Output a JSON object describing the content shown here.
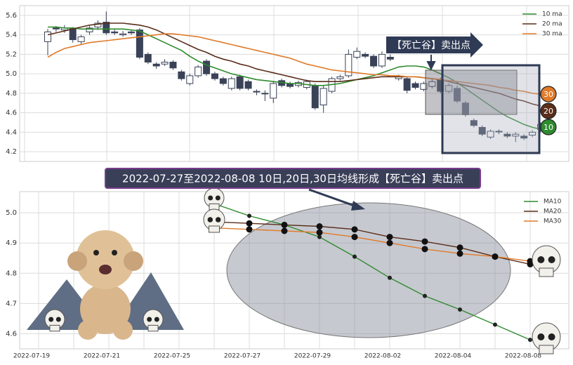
{
  "chart_data": [
    {
      "type": "candlestick",
      "open": [
        5.33,
        5.47,
        5.45,
        5.47,
        5.33,
        5.43,
        5.48,
        5.53,
        5.43,
        5.4,
        5.43,
        5.45,
        5.2,
        5.1,
        5.1,
        5.12,
        5.02,
        4.9,
        4.98,
        5.13,
        5.0,
        4.95,
        4.85,
        4.97,
        4.92,
        4.82,
        4.8,
        4.75,
        4.93,
        4.9,
        4.88,
        4.86,
        4.88,
        4.68,
        4.82,
        4.95,
        4.98,
        5.17,
        5.2,
        5.18,
        5.08,
        5.17,
        4.95,
        4.95,
        4.9,
        4.84,
        4.87,
        4.94,
        4.82,
        4.85,
        4.7,
        4.52,
        4.45,
        4.35,
        4.41,
        4.38,
        4.36,
        4.36,
        4.37,
        4.43
      ],
      "close": [
        5.43,
        5.46,
        5.47,
        5.35,
        5.38,
        5.47,
        5.52,
        5.42,
        5.42,
        5.41,
        5.42,
        5.17,
        5.12,
        5.08,
        5.12,
        5.06,
        4.95,
        4.98,
        5.07,
        5.0,
        4.95,
        4.9,
        4.95,
        4.85,
        4.85,
        4.82,
        4.8,
        4.9,
        4.88,
        4.87,
        4.91,
        4.92,
        4.65,
        4.85,
        4.95,
        4.97,
        5.2,
        5.23,
        5.18,
        5.08,
        5.2,
        5.15,
        4.97,
        4.83,
        4.86,
        4.9,
        4.92,
        4.82,
        4.88,
        4.72,
        4.58,
        4.47,
        4.38,
        4.41,
        4.41,
        4.36,
        4.38,
        4.34,
        4.4,
        4.48
      ],
      "high": [
        5.46,
        5.49,
        5.5,
        5.48,
        5.4,
        5.49,
        5.55,
        5.64,
        5.46,
        5.44,
        5.45,
        5.47,
        5.22,
        5.12,
        5.15,
        5.14,
        5.04,
        5.0,
        5.09,
        5.15,
        5.02,
        4.97,
        4.97,
        4.99,
        4.94,
        4.84,
        4.83,
        4.92,
        4.95,
        4.92,
        4.93,
        4.94,
        4.9,
        4.88,
        4.97,
        4.99,
        5.25,
        5.27,
        5.22,
        5.2,
        5.23,
        5.2,
        4.99,
        4.97,
        4.92,
        4.92,
        4.95,
        4.96,
        4.9,
        4.88,
        4.72,
        4.54,
        4.47,
        4.43,
        4.43,
        4.4,
        4.4,
        4.38,
        4.42,
        4.5
      ],
      "low": [
        5.19,
        5.43,
        5.42,
        5.32,
        5.3,
        5.4,
        5.45,
        5.4,
        5.4,
        5.38,
        5.4,
        5.15,
        5.1,
        5.05,
        5.08,
        5.04,
        4.93,
        4.88,
        4.96,
        4.98,
        4.93,
        4.88,
        4.83,
        4.83,
        4.83,
        4.78,
        4.72,
        4.7,
        4.86,
        4.85,
        4.86,
        4.84,
        4.63,
        4.6,
        4.8,
        4.93,
        4.96,
        5.15,
        5.16,
        5.06,
        5.06,
        5.13,
        4.93,
        4.8,
        4.84,
        4.82,
        4.85,
        4.8,
        4.8,
        4.7,
        4.56,
        4.45,
        4.36,
        4.33,
        4.38,
        4.34,
        4.3,
        4.32,
        4.35,
        4.4
      ],
      "series": [
        {
          "name": "10 ma",
          "color": "#2e8b2e",
          "values": [
            5.48,
            5.48,
            5.47,
            5.47,
            5.46,
            5.46,
            5.46,
            5.46,
            5.46,
            5.46,
            5.45,
            5.44,
            5.4,
            5.36,
            5.32,
            5.28,
            5.24,
            5.18,
            5.13,
            5.09,
            5.06,
            5.03,
            5.0,
            4.98,
            4.96,
            4.94,
            4.93,
            4.92,
            4.91,
            4.9,
            4.9,
            4.89,
            4.88,
            4.88,
            4.89,
            4.9,
            4.92,
            4.94,
            4.96,
            4.98,
            5.01,
            5.04,
            5.07,
            5.08,
            5.08,
            5.07,
            5.04,
            5.0,
            4.96,
            4.91,
            4.85,
            4.79,
            4.73,
            4.67,
            4.61,
            4.56,
            4.52,
            4.48,
            4.45,
            4.43
          ]
        },
        {
          "name": "20 ma",
          "color": "#5a2e1a",
          "values": [
            5.4,
            5.42,
            5.44,
            5.46,
            5.48,
            5.5,
            5.51,
            5.52,
            5.52,
            5.52,
            5.51,
            5.5,
            5.48,
            5.45,
            5.41,
            5.37,
            5.33,
            5.29,
            5.25,
            5.22,
            5.18,
            5.15,
            5.13,
            5.1,
            5.08,
            5.05,
            5.03,
            5.01,
            4.99,
            4.97,
            4.95,
            4.93,
            4.92,
            4.92,
            4.92,
            4.92,
            4.93,
            4.94,
            4.95,
            4.96,
            4.97,
            4.97,
            4.97,
            4.97,
            4.97,
            4.96,
            4.95,
            4.94,
            4.92,
            4.9,
            4.88,
            4.86,
            4.84,
            4.82,
            4.8,
            4.77,
            4.74,
            4.72,
            4.69,
            4.67
          ]
        },
        {
          "name": "30 ma",
          "color": "#e07b2a",
          "values": [
            5.17,
            5.22,
            5.26,
            5.28,
            5.3,
            5.32,
            5.33,
            5.34,
            5.35,
            5.36,
            5.37,
            5.38,
            5.39,
            5.4,
            5.41,
            5.41,
            5.4,
            5.39,
            5.38,
            5.36,
            5.34,
            5.32,
            5.3,
            5.28,
            5.26,
            5.24,
            5.22,
            5.2,
            5.18,
            5.16,
            5.13,
            5.1,
            5.08,
            5.06,
            5.04,
            5.03,
            5.02,
            5.01,
            5.0,
            4.99,
            4.99,
            4.98,
            4.98,
            4.97,
            4.97,
            4.96,
            4.95,
            4.94,
            4.93,
            4.92,
            4.91,
            4.9,
            4.89,
            4.88,
            4.86,
            4.85,
            4.83,
            4.82,
            4.8,
            4.79
          ]
        }
      ],
      "end_labels": [
        "10",
        "20",
        "30"
      ],
      "annotation": "【死亡谷】卖出点",
      "ylim": [
        4.1,
        5.7
      ],
      "yticks": [
        4.2,
        4.4,
        4.6,
        4.8,
        {
          "value": 5,
          "label": "5.0"
        },
        5.2,
        5.4,
        5.6
      ],
      "grid": true
    },
    {
      "type": "line",
      "title": "2022-07-27至2022-08-08 10日,20日,30日均线形成【死亡谷】卖出点",
      "categories": [
        "2022-07-19",
        null,
        "2022-07-21",
        null,
        "2022-07-25",
        null,
        "2022-07-27",
        null,
        "2022-07-29",
        null,
        "2022-08-02",
        null,
        "2022-08-04",
        null,
        "2022-08-08"
      ],
      "series": [
        {
          "name": "MA10",
          "color": "#2e8b2e",
          "values": [
            null,
            null,
            null,
            null,
            null,
            5.03,
            4.99,
            4.96,
            4.92,
            4.855,
            4.785,
            4.725,
            4.68,
            4.63,
            4.58
          ]
        },
        {
          "name": "MA20",
          "color": "#5a2e1a",
          "values": [
            null,
            null,
            null,
            null,
            null,
            4.97,
            4.965,
            4.96,
            4.955,
            4.945,
            4.92,
            4.905,
            4.885,
            4.855,
            4.83
          ]
        },
        {
          "name": "MA30",
          "color": "#e07b2a",
          "values": [
            null,
            null,
            null,
            null,
            null,
            4.95,
            4.945,
            4.94,
            4.935,
            4.92,
            4.9,
            4.88,
            4.865,
            4.855,
            4.84
          ]
        }
      ],
      "ylim": [
        4.55,
        5.07
      ],
      "yticks": [
        4.6,
        4.7,
        4.8,
        4.9,
        {
          "value": 5,
          "label": "5.0"
        }
      ],
      "grid": true
    }
  ]
}
